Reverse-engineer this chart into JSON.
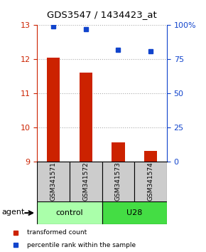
{
  "title": "GDS3547 / 1434423_at",
  "samples": [
    "GSM341571",
    "GSM341572",
    "GSM341573",
    "GSM341574"
  ],
  "bar_values": [
    12.05,
    11.6,
    9.55,
    9.3
  ],
  "dot_values": [
    99,
    97,
    82,
    81
  ],
  "ylim_left": [
    9,
    13
  ],
  "ylim_right": [
    0,
    100
  ],
  "yticks_left": [
    9,
    10,
    11,
    12,
    13
  ],
  "yticks_right": [
    0,
    25,
    50,
    75,
    100
  ],
  "ytick_labels_right": [
    "0",
    "25",
    "50",
    "75",
    "100%"
  ],
  "bar_color": "#cc2200",
  "dot_color": "#1144cc",
  "bar_bottom": 9,
  "groups": [
    {
      "label": "control",
      "samples": [
        0,
        1
      ],
      "color": "#aaffaa"
    },
    {
      "label": "U28",
      "samples": [
        2,
        3
      ],
      "color": "#44dd44"
    }
  ],
  "agent_label": "agent",
  "legend_bar_label": "transformed count",
  "legend_dot_label": "percentile rank within the sample",
  "grid_color": "#aaaaaa",
  "sample_box_color": "#cccccc",
  "background_color": "#ffffff"
}
